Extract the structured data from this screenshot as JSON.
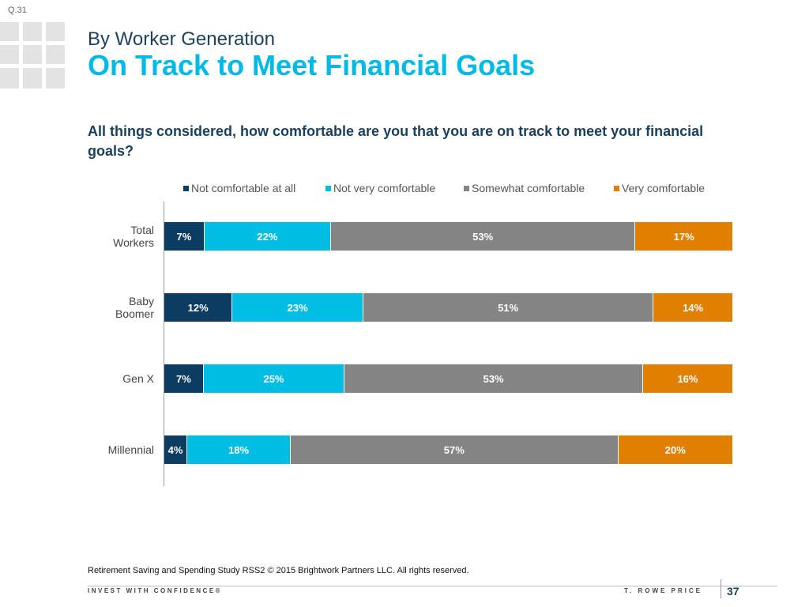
{
  "header": {
    "question_number": "Q.31",
    "subtitle": "By Worker Generation",
    "title": "On Track to Meet Financial Goals"
  },
  "question": "All things considered, how comfortable are you that you are on track to meet your financial goals?",
  "chart_data": {
    "type": "bar",
    "orientation": "horizontal",
    "stacked": true,
    "legend_position": "top",
    "categories": [
      [
        "Total",
        "Workers"
      ],
      [
        "Baby",
        "Boomer"
      ],
      [
        "Gen X"
      ],
      [
        "Millennial"
      ]
    ],
    "series": [
      {
        "name": "Not comfortable at all",
        "color": "#0c3c62",
        "values": [
          7,
          12,
          7,
          4
        ],
        "labels": [
          "7%",
          "12%",
          "7%",
          "4%"
        ]
      },
      {
        "name": "Not very comfortable",
        "color": "#00bde3",
        "values": [
          22,
          23,
          25,
          18
        ],
        "labels": [
          "22%",
          "23%",
          "25%",
          "18%"
        ]
      },
      {
        "name": "Somewhat comfortable",
        "color": "#848484",
        "values": [
          53,
          51,
          53,
          57
        ],
        "labels": [
          "53%",
          "51%",
          "53%",
          "57%"
        ]
      },
      {
        "name": "Very comfortable",
        "color": "#e07f00",
        "values": [
          17,
          14,
          16,
          20
        ],
        "labels": [
          "17%",
          "14%",
          "16%",
          "20%"
        ]
      }
    ]
  },
  "footer": {
    "source": "Retirement Saving and Spending Study RSS2 © 2015 Brightwork Partners LLC. All rights reserved.",
    "tagline": "INVEST WITH CONFIDENCE®",
    "brand": "T. ROWE PRICE",
    "page_number": "37"
  }
}
